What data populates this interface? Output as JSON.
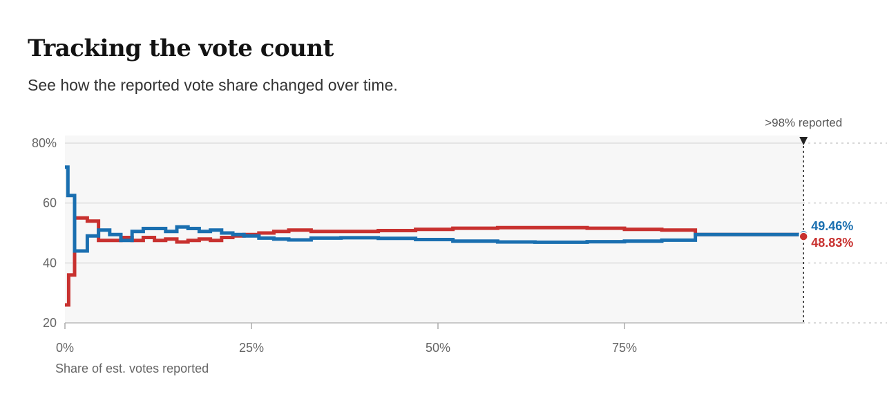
{
  "header": {
    "title": "Tracking the vote count",
    "subtitle": "See how the reported vote share changed over time."
  },
  "chart_data": {
    "type": "line",
    "title": "Tracking the vote count",
    "subtitle": "See how the reported vote share changed over time.",
    "xlabel": "Share of est. votes reported",
    "ylabel": "",
    "xlim": [
      0,
      100
    ],
    "ylim": [
      20,
      80
    ],
    "x_ticks": [
      {
        "value": 0,
        "label": "0%"
      },
      {
        "value": 25,
        "label": "25%"
      },
      {
        "value": 50,
        "label": "50%"
      },
      {
        "value": 75,
        "label": "75%"
      }
    ],
    "y_ticks": [
      {
        "value": 80,
        "label": "80%"
      },
      {
        "value": 60,
        "label": "60"
      },
      {
        "value": 40,
        "label": "40"
      },
      {
        "value": 20,
        "label": "20"
      }
    ],
    "grid": true,
    "step": true,
    "annotation": {
      "x": 99,
      "label": ">98% reported"
    },
    "series": [
      {
        "color": "#c8312f",
        "end_label": "48.83%",
        "x": [
          0,
          0.5,
          1.3,
          3.0,
          4.5,
          7.5,
          9.0,
          10.5,
          12.0,
          13.5,
          15.0,
          16.5,
          18.0,
          19.5,
          21.0,
          22.5,
          24.0,
          26.0,
          28.0,
          30.0,
          33.0,
          37.0,
          42.0,
          47.0,
          52.0,
          58.0,
          63.0,
          70.0,
          75.0,
          80.0,
          84.5,
          99
        ],
        "y": [
          26,
          36,
          55,
          54,
          47.5,
          48.5,
          47.5,
          48.5,
          47.5,
          48,
          47,
          47.5,
          48,
          47.5,
          48.5,
          49,
          49.5,
          50,
          50.5,
          51,
          50.5,
          50.5,
          50.8,
          51.2,
          51.6,
          51.8,
          51.8,
          51.6,
          51.2,
          51.0,
          49.5,
          48.83
        ]
      },
      {
        "color": "#1a6fb0",
        "end_label": "49.46%",
        "x": [
          0,
          0.4,
          1.3,
          3.0,
          4.5,
          6.0,
          7.5,
          9.0,
          10.5,
          12.0,
          13.5,
          15.0,
          16.5,
          18.0,
          19.5,
          21.0,
          22.5,
          24.0,
          26.0,
          28.0,
          30.0,
          33.0,
          37.0,
          42.0,
          47.0,
          52.0,
          58.0,
          63.0,
          70.0,
          75.0,
          80.0,
          84.5,
          99
        ],
        "y": [
          72,
          62.5,
          44,
          49,
          51,
          49.5,
          47.5,
          50.5,
          51.5,
          51.5,
          50.5,
          52,
          51.5,
          50.5,
          51,
          50,
          49.5,
          49,
          48.3,
          48,
          47.7,
          48.3,
          48.4,
          48.2,
          47.8,
          47.3,
          47,
          46.9,
          47.1,
          47.3,
          47.6,
          49.5,
          49.46
        ]
      }
    ]
  }
}
